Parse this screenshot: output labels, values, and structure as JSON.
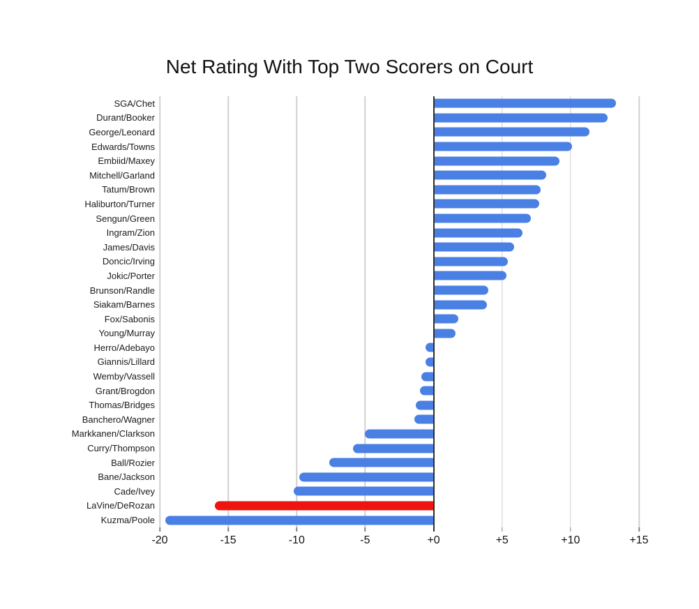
{
  "chart_data": {
    "type": "bar",
    "orientation": "horizontal",
    "title": "Net Rating With Top Two Scorers on Court",
    "categories": [
      "SGA/Chet",
      "Durant/Booker",
      "George/Leonard",
      "Edwards/Towns",
      "Embiid/Maxey",
      "Mitchell/Garland",
      "Tatum/Brown",
      "Haliburton/Turner",
      "Sengun/Green",
      "Ingram/Zion",
      "James/Davis",
      "Doncic/Irving",
      "Jokic/Porter",
      "Brunson/Randle",
      "Siakam/Barnes",
      "Fox/Sabonis",
      "Young/Murray",
      "Herro/Adebayo",
      "Giannis/Lillard",
      "Wemby/Vassell",
      "Grant/Brogdon",
      "Thomas/Bridges",
      "Banchero/Wagner",
      "Markkanen/Clarkson",
      "Curry/Thompson",
      "Ball/Rozier",
      "Bane/Jackson",
      "Cade/Ivey",
      "LaVine/DeRozan",
      "Kuzma/Poole"
    ],
    "values": [
      13.3,
      12.7,
      11.4,
      10.1,
      9.2,
      8.2,
      7.8,
      7.7,
      7.1,
      6.5,
      5.9,
      5.4,
      5.3,
      4.0,
      3.9,
      1.8,
      1.6,
      -0.6,
      -0.6,
      -0.9,
      -1.0,
      -1.3,
      -1.4,
      -5.0,
      -5.9,
      -7.6,
      -9.8,
      -10.2,
      -16.0,
      -19.6
    ],
    "highlight_category": "LaVine/DeRozan",
    "xlim": [
      -20,
      15
    ],
    "x_ticks": [
      -20,
      -15,
      -10,
      -5,
      0,
      5,
      10,
      15
    ],
    "x_tick_labels": [
      "-20",
      "-15",
      "-10",
      "-5",
      "+0",
      "+5",
      "+10",
      "+15"
    ],
    "grid": true,
    "legend": "none",
    "colors": {
      "bar": "#4a80e4",
      "highlight": "#ee1410",
      "gridline": "#d0d0d0",
      "zero_line": "#2e2e2e",
      "background": "#ffffff"
    }
  }
}
